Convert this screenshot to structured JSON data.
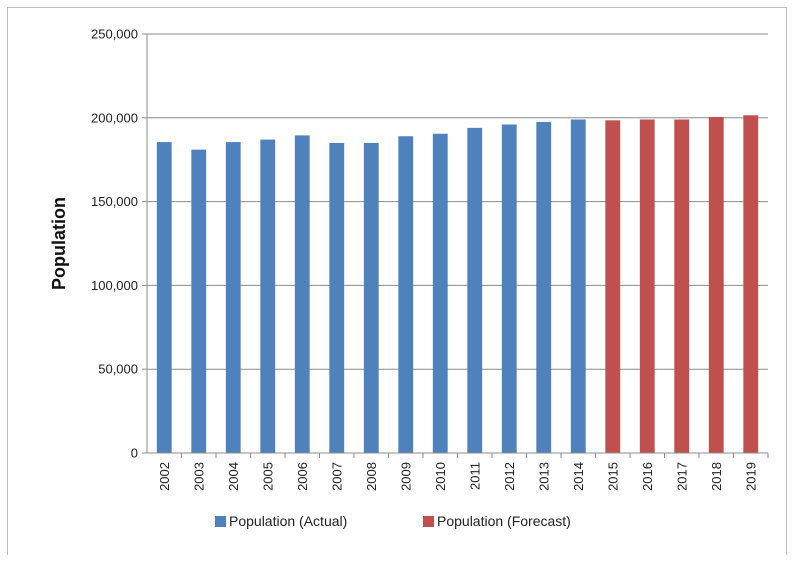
{
  "chart_data": {
    "type": "bar",
    "title": "",
    "xlabel": "",
    "ylabel": "Population",
    "ylim": [
      0,
      250000
    ],
    "yticks": [
      "0",
      "50,000",
      "100,000",
      "150,000",
      "200,000",
      "250,000"
    ],
    "ytick_values": [
      0,
      50000,
      100000,
      150000,
      200000,
      250000
    ],
    "grid": true,
    "legend_position": "bottom",
    "categories": [
      "2002",
      "2003",
      "2004",
      "2005",
      "2006",
      "2007",
      "2008",
      "2009",
      "2010",
      "2011",
      "2012",
      "2013",
      "2014",
      "2015",
      "2016",
      "2017",
      "2018",
      "2019"
    ],
    "series": [
      {
        "name": "Population (Actual)",
        "color": "#4f81bd",
        "values": [
          185500,
          181000,
          185500,
          187000,
          189500,
          185000,
          185000,
          189000,
          190500,
          194000,
          196000,
          197500,
          199000,
          null,
          null,
          null,
          null,
          null
        ]
      },
      {
        "name": "Population (Forecast)",
        "color": "#c0504d",
        "values": [
          null,
          null,
          null,
          null,
          null,
          null,
          null,
          null,
          null,
          null,
          null,
          null,
          null,
          198500,
          199000,
          199000,
          200500,
          201500
        ]
      }
    ]
  }
}
